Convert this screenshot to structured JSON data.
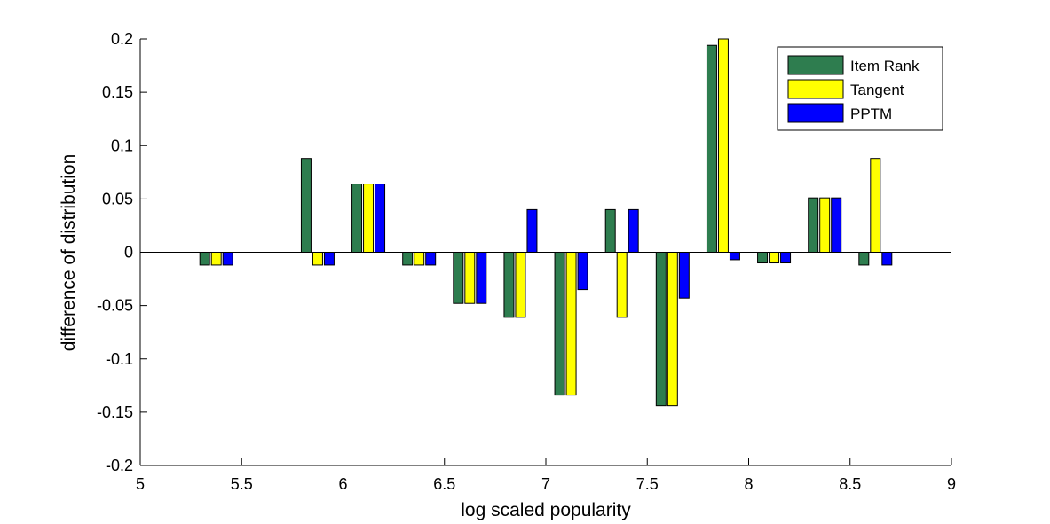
{
  "chart_data": {
    "type": "bar",
    "xlabel": "log scaled popularity",
    "ylabel": "difference of distribution",
    "xlim": [
      5,
      9
    ],
    "ylim": [
      -0.2,
      0.2
    ],
    "xticks": [
      "5",
      "5.5",
      "6",
      "6.5",
      "7",
      "7.5",
      "8",
      "8.5",
      "9"
    ],
    "yticks": [
      "-0.2",
      "-0.15",
      "-0.1",
      "-0.05",
      "0",
      "0.05",
      "0.1",
      "0.15",
      "0.2"
    ],
    "grid": false,
    "legend_position": "top-right",
    "x": [
      5.375,
      5.875,
      6.125,
      6.375,
      6.625,
      6.875,
      7.125,
      7.375,
      7.625,
      7.875,
      8.125,
      8.375,
      8.625
    ],
    "series": [
      {
        "name": "Item Rank",
        "color": "#2e7d4f",
        "values": [
          -0.012,
          0.088,
          0.064,
          -0.012,
          -0.048,
          -0.061,
          -0.134,
          0.04,
          -0.144,
          0.194,
          -0.01,
          0.051,
          -0.012
        ]
      },
      {
        "name": "Tangent",
        "color": "#ffff00",
        "values": [
          -0.012,
          -0.012,
          0.064,
          -0.012,
          -0.048,
          -0.061,
          -0.134,
          -0.061,
          -0.144,
          0.2,
          -0.01,
          0.051,
          0.088
        ]
      },
      {
        "name": "PPTM",
        "color": "#0000ff",
        "values": [
          -0.012,
          -0.012,
          0.064,
          -0.012,
          -0.048,
          0.04,
          -0.035,
          0.04,
          -0.043,
          -0.007,
          -0.01,
          0.051,
          -0.012
        ]
      }
    ]
  }
}
